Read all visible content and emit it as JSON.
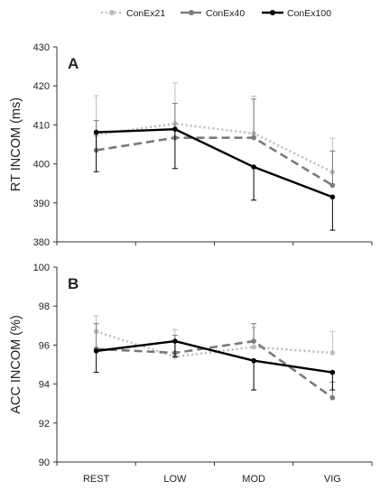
{
  "legend": [
    {
      "name": "ConEx21",
      "color": "#bdbdbd",
      "dash": "dotted"
    },
    {
      "name": "ConEx40",
      "color": "#7a7a7a",
      "dash": "dashed"
    },
    {
      "name": "ConEx100",
      "color": "#000000",
      "dash": "solid"
    }
  ],
  "chart_data": [
    {
      "type": "line",
      "panel_label": "A",
      "categories": [
        "REST",
        "LOW",
        "MOD",
        "VIG"
      ],
      "ylabel": "RT INCOM (ms)",
      "ylim": [
        380,
        430
      ],
      "yticks": [
        380,
        390,
        400,
        410,
        420,
        430
      ],
      "show_xticklabels": false,
      "series": [
        {
          "name": "ConEx21",
          "values": [
            407.5,
            410.3,
            407.8,
            397.9
          ],
          "err_up": [
            10.0,
            10.5,
            9.6,
            8.7
          ],
          "err_down": [
            0,
            0,
            0,
            0
          ]
        },
        {
          "name": "ConEx40",
          "values": [
            403.5,
            406.7,
            406.7,
            394.5
          ],
          "err_up": [
            7.6,
            8.8,
            9.9,
            8.8
          ],
          "err_down": [
            0,
            0,
            0,
            0
          ]
        },
        {
          "name": "ConEx100",
          "values": [
            408.1,
            408.9,
            399.2,
            391.5
          ],
          "err_up": [
            0,
            0,
            0,
            0
          ],
          "err_down": [
            10.1,
            10.1,
            8.5,
            8.5
          ]
        }
      ]
    },
    {
      "type": "line",
      "panel_label": "B",
      "categories": [
        "REST",
        "LOW",
        "MOD",
        "VIG"
      ],
      "ylabel": "ACC INCOM (%)",
      "ylim": [
        90,
        100
      ],
      "yticks": [
        90,
        92,
        94,
        96,
        98,
        100
      ],
      "show_xticklabels": true,
      "series": [
        {
          "name": "ConEx21",
          "values": [
            96.7,
            95.4,
            95.9,
            95.6
          ],
          "err_up": [
            0.8,
            1.4,
            1.0,
            1.1
          ],
          "err_down": [
            0,
            0,
            0,
            0
          ]
        },
        {
          "name": "ConEx40",
          "values": [
            95.8,
            95.6,
            96.2,
            93.3
          ],
          "err_up": [
            1.3,
            0.9,
            0.9,
            0.8
          ],
          "err_down": [
            0,
            0,
            0,
            0
          ]
        },
        {
          "name": "ConEx100",
          "values": [
            95.7,
            96.2,
            95.2,
            94.6
          ],
          "err_up": [
            0,
            0,
            0,
            0
          ],
          "err_down": [
            1.1,
            0.8,
            1.5,
            0.9
          ]
        }
      ]
    }
  ]
}
